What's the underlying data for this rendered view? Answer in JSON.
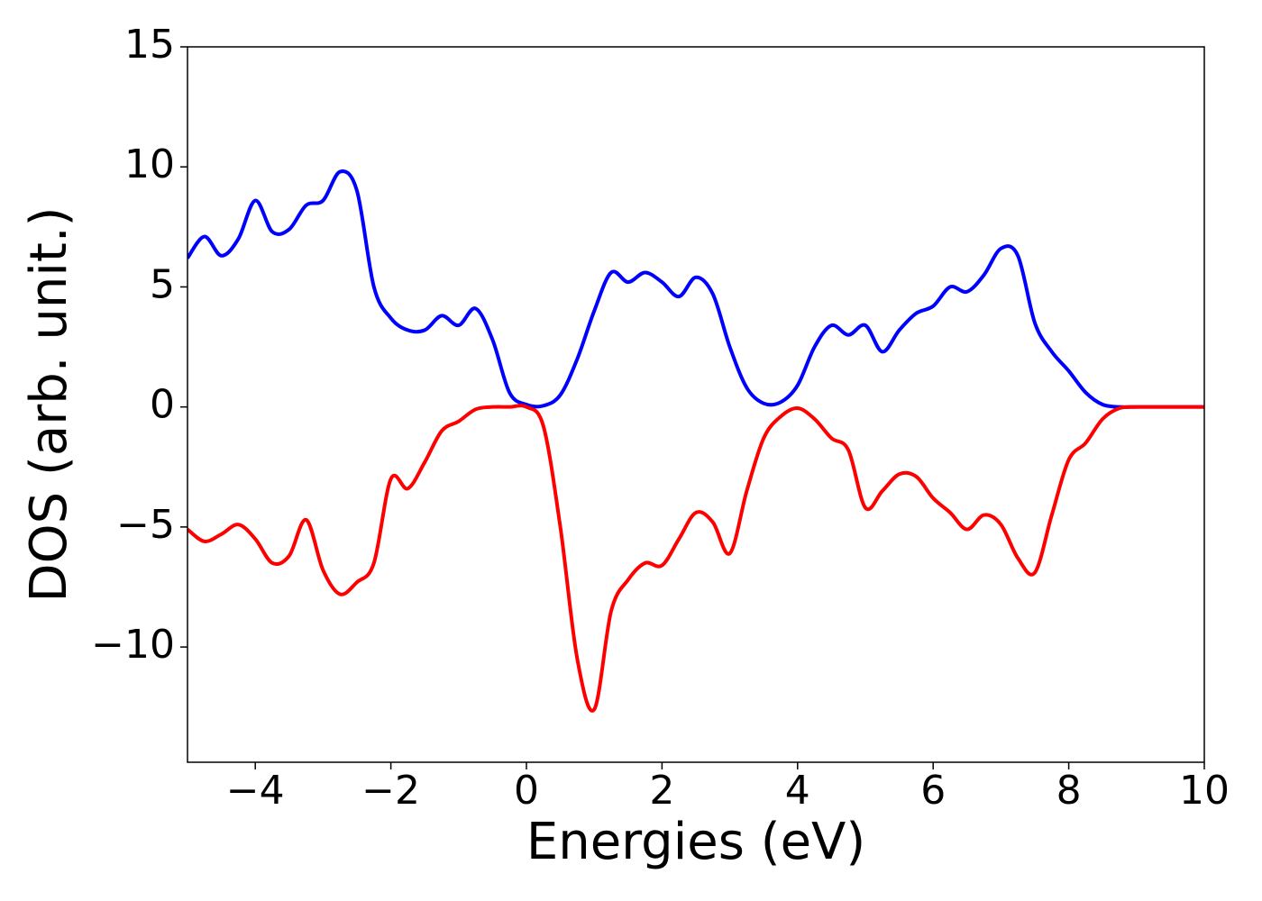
{
  "chart_data": {
    "type": "line",
    "xlabel": "Energies (eV)",
    "ylabel": "DOS (arb. unit.)",
    "x": [
      -5,
      -4.75,
      -4.5,
      -4.25,
      -4,
      -3.75,
      -3.5,
      -3.25,
      -3,
      -2.75,
      -2.5,
      -2.25,
      -2,
      -1.75,
      -1.5,
      -1.25,
      -1,
      -0.75,
      -0.5,
      -0.25,
      0,
      0.25,
      0.5,
      0.75,
      1,
      1.25,
      1.5,
      1.75,
      2,
      2.25,
      2.5,
      2.75,
      3,
      3.25,
      3.5,
      3.75,
      4,
      4.25,
      4.5,
      4.75,
      5,
      5.25,
      5.5,
      5.75,
      6,
      6.25,
      6.5,
      6.75,
      7,
      7.25,
      7.5,
      7.75,
      8,
      8.25,
      8.5,
      8.75,
      9,
      9.25,
      9.5,
      9.75,
      10
    ],
    "series": [
      {
        "color": "#0000ff",
        "values": [
          6.2,
          7.1,
          6.3,
          7.0,
          8.6,
          7.3,
          7.4,
          8.4,
          8.6,
          9.8,
          9.0,
          5.0,
          3.7,
          3.2,
          3.2,
          3.8,
          3.4,
          4.1,
          2.8,
          0.6,
          0.1,
          0.05,
          0.5,
          2.0,
          4.0,
          5.6,
          5.2,
          5.6,
          5.2,
          4.6,
          5.4,
          4.7,
          2.5,
          0.8,
          0.15,
          0.2,
          0.9,
          2.5,
          3.4,
          3.0,
          3.4,
          2.3,
          3.2,
          3.9,
          4.2,
          5.0,
          4.8,
          5.5,
          6.6,
          6.3,
          3.5,
          2.3,
          1.5,
          0.6,
          0.1,
          0,
          0,
          0,
          0,
          0,
          0
        ]
      },
      {
        "color": "#ff0000",
        "values": [
          -5.1,
          -5.6,
          -5.3,
          -4.9,
          -5.5,
          -6.5,
          -6.2,
          -4.7,
          -6.8,
          -7.8,
          -7.3,
          -6.5,
          -3.0,
          -3.4,
          -2.3,
          -1.0,
          -0.6,
          -0.1,
          0,
          0,
          0,
          -0.8,
          -5.0,
          -10.5,
          -12.6,
          -8.5,
          -7.2,
          -6.5,
          -6.6,
          -5.5,
          -4.4,
          -4.8,
          -6.1,
          -3.5,
          -1.3,
          -0.4,
          -0.05,
          -0.5,
          -1.3,
          -1.8,
          -4.2,
          -3.5,
          -2.8,
          -2.9,
          -3.8,
          -4.4,
          -5.1,
          -4.5,
          -4.9,
          -6.3,
          -6.9,
          -4.5,
          -2.2,
          -1.5,
          -0.5,
          -0.05,
          0,
          0,
          0,
          0,
          0
        ]
      }
    ],
    "xlim": [
      -5,
      10
    ],
    "xticks": [
      {
        "value": -4,
        "label": "−4"
      },
      {
        "value": -2,
        "label": "−2"
      },
      0,
      2,
      4,
      6,
      8,
      10
    ],
    "ylim": [
      -14.8,
      15
    ],
    "yticks": [
      {
        "value": -10,
        "label": "−10"
      },
      {
        "value": -5,
        "label": "−5"
      },
      0,
      5,
      10,
      15
    ],
    "grid": false
  }
}
